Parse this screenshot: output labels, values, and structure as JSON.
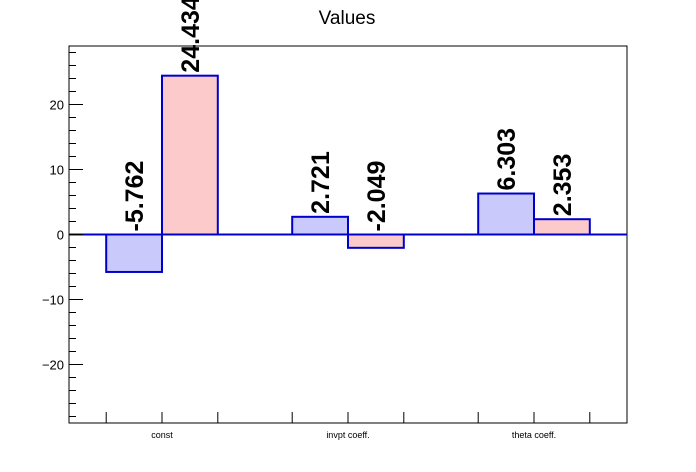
{
  "chart_data": {
    "type": "bar",
    "title": "Values",
    "categories": [
      "const",
      "invpt coeff.",
      "theta coeff."
    ],
    "series": [
      {
        "color": "#c9c9fb",
        "values": [
          -5.762,
          2.721,
          6.303
        ],
        "labels": [
          "-5.762",
          "2.721",
          "6.303"
        ]
      },
      {
        "color": "#fccaca",
        "values": [
          24.434,
          -2.049,
          2.353
        ],
        "labels": [
          "24.434",
          "-2.049",
          "2.353"
        ]
      }
    ],
    "bar_edge_color": "#0000cc",
    "ylim": [
      -29,
      29
    ],
    "yticks": [
      -20,
      -10,
      0,
      10,
      20
    ],
    "ytick_labels": [
      "−20",
      "−10",
      "0",
      "10",
      "20"
    ],
    "xlabel": "",
    "ylabel": "",
    "grid": false,
    "legend": "none"
  }
}
